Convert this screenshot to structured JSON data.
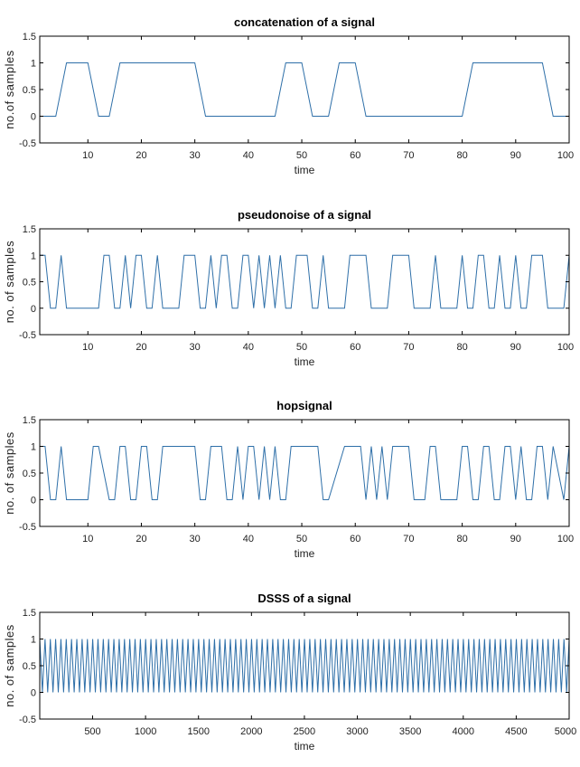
{
  "colors": {
    "signal": "#2e6fa8",
    "axes": "#000000",
    "watermark": "#f2b8c0",
    "background": "#ffffff"
  },
  "chart_data": [
    {
      "type": "line",
      "title": "concatenation of a signal",
      "xlabel": "time",
      "ylabel": "no.of samples",
      "xlim": [
        1,
        100
      ],
      "ylim": [
        -0.5,
        1.5
      ],
      "xticks": [
        10,
        20,
        30,
        40,
        50,
        60,
        70,
        80,
        90,
        100
      ],
      "yticks": [
        -0.5,
        0,
        0.5,
        1,
        1.5
      ],
      "ytick_labels": [
        "-0.5",
        "0",
        "0.5",
        "1",
        "1.5"
      ],
      "series": [
        {
          "x": [
            1,
            4,
            6,
            10,
            12,
            14,
            16,
            30,
            32,
            45,
            47,
            50,
            52,
            55,
            57,
            60,
            62,
            80,
            82,
            95,
            97,
            100
          ],
          "y": [
            0,
            0,
            1,
            1,
            0,
            0,
            1,
            1,
            0,
            0,
            1,
            1,
            0,
            0,
            1,
            1,
            0,
            0,
            1,
            1,
            0,
            0
          ]
        }
      ]
    },
    {
      "type": "line",
      "title": "pseudonoise of a signal",
      "xlabel": "time",
      "ylabel": "no. of samples",
      "xlim": [
        1,
        100
      ],
      "ylim": [
        -0.5,
        1.5
      ],
      "xticks": [
        10,
        20,
        30,
        40,
        50,
        60,
        70,
        80,
        90,
        100
      ],
      "yticks": [
        -0.5,
        0,
        0.5,
        1,
        1.5
      ],
      "ytick_labels": [
        "-0.5",
        "0",
        "0.5",
        "1",
        "1.5"
      ],
      "series": [
        {
          "x": [
            1,
            2,
            3,
            4,
            5,
            6,
            12,
            13,
            14,
            15,
            16,
            17,
            18,
            19,
            20,
            21,
            22,
            23,
            24,
            27,
            28,
            29,
            30,
            31,
            32,
            33,
            34,
            35,
            36,
            37,
            38,
            39,
            40,
            41,
            42,
            43,
            44,
            45,
            46,
            47,
            48,
            49,
            50,
            51,
            52,
            53,
            54,
            55,
            58,
            59,
            60,
            61,
            62,
            63,
            66,
            67,
            68,
            69,
            70,
            71,
            72,
            73,
            74,
            75,
            76,
            79,
            80,
            81,
            82,
            83,
            84,
            85,
            86,
            87,
            88,
            89,
            90,
            91,
            92,
            93,
            94,
            95,
            96,
            97,
            99,
            100
          ],
          "y": [
            1,
            1,
            0,
            0,
            1,
            0,
            0,
            1,
            1,
            0,
            0,
            1,
            0,
            1,
            1,
            0,
            0,
            1,
            0,
            0,
            1,
            1,
            1,
            0,
            0,
            1,
            0,
            1,
            1,
            0,
            0,
            1,
            1,
            0,
            1,
            0,
            1,
            0,
            1,
            0,
            0,
            1,
            1,
            1,
            0,
            0,
            1,
            0,
            0,
            1,
            1,
            1,
            1,
            0,
            0,
            1,
            1,
            1,
            1,
            0,
            0,
            0,
            0,
            1,
            0,
            0,
            1,
            0,
            0,
            1,
            1,
            0,
            0,
            1,
            0,
            0,
            1,
            0,
            0,
            1,
            1,
            1,
            0,
            0,
            0,
            1
          ]
        }
      ]
    },
    {
      "type": "line",
      "title": "hopsignal",
      "xlabel": "time",
      "ylabel": "no. of samples",
      "xlim": [
        1,
        100
      ],
      "ylim": [
        -0.5,
        1.5
      ],
      "xticks": [
        10,
        20,
        30,
        40,
        50,
        60,
        70,
        80,
        90,
        100
      ],
      "yticks": [
        -0.5,
        0,
        0.5,
        1,
        1.5
      ],
      "ytick_labels": [
        "-0.5",
        "0",
        "0.5",
        "1",
        "1.5"
      ],
      "series": [
        {
          "x": [
            1,
            2,
            3,
            4,
            5,
            6,
            10,
            11,
            12,
            14,
            15,
            16,
            17,
            18,
            19,
            20,
            21,
            22,
            23,
            24,
            27,
            28,
            29,
            30,
            31,
            32,
            33,
            34,
            35,
            36,
            37,
            38,
            39,
            40,
            41,
            42,
            43,
            44,
            45,
            46,
            47,
            48,
            49,
            50,
            51,
            52,
            53,
            54,
            55,
            58,
            59,
            60,
            61,
            62,
            63,
            64,
            65,
            66,
            67,
            68,
            69,
            70,
            71,
            72,
            73,
            74,
            75,
            76,
            79,
            80,
            81,
            82,
            83,
            84,
            85,
            86,
            87,
            88,
            89,
            90,
            91,
            92,
            93,
            94,
            95,
            96,
            97,
            99,
            100
          ],
          "y": [
            1,
            1,
            0,
            0,
            1,
            0,
            0,
            1,
            1,
            0,
            0,
            1,
            1,
            0,
            0,
            1,
            1,
            0,
            0,
            1,
            1,
            1,
            1,
            1,
            0,
            0,
            1,
            1,
            1,
            0,
            0,
            1,
            0,
            1,
            1,
            0,
            1,
            0,
            1,
            0,
            0,
            1,
            1,
            1,
            1,
            1,
            1,
            0,
            0,
            1,
            1,
            1,
            1,
            0,
            1,
            0,
            1,
            0,
            1,
            1,
            1,
            1,
            0,
            0,
            0,
            1,
            1,
            0,
            0,
            1,
            1,
            0,
            0,
            1,
            1,
            0,
            0,
            1,
            1,
            0,
            1,
            0,
            0,
            1,
            1,
            0,
            1,
            0,
            1
          ]
        }
      ]
    },
    {
      "type": "line",
      "title": "DSSS of a signal",
      "xlabel": "time",
      "ylabel": "no. of samples",
      "xlim": [
        1,
        5000
      ],
      "ylim": [
        -0.5,
        1.5
      ],
      "xticks": [
        500,
        1000,
        1500,
        2000,
        2500,
        3000,
        3500,
        4000,
        4500,
        5000
      ],
      "yticks": [
        -0.5,
        0,
        0.5,
        1,
        1.5
      ],
      "ytick_labels": [
        "-0.5",
        "0",
        "0.5",
        "1",
        "1.5"
      ],
      "series": [
        {
          "description_of_pattern": "rapid oscillation between 0 and 1",
          "period": 50,
          "xmin": 1,
          "xmax": 5000,
          "low": 0,
          "high": 1
        }
      ]
    }
  ]
}
